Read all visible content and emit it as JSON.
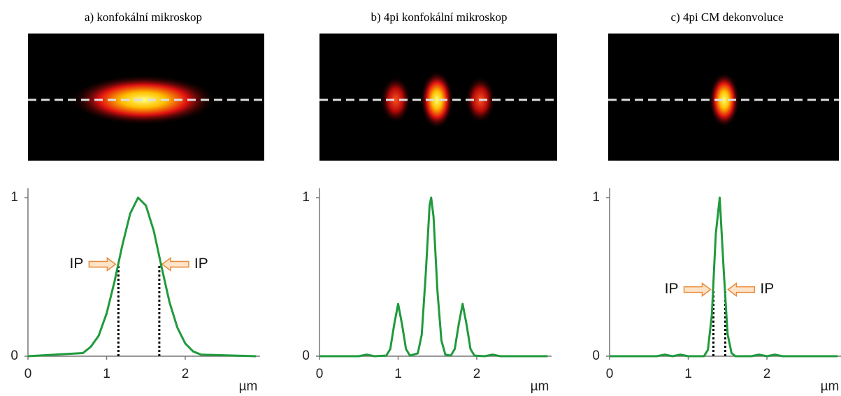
{
  "chart_data": [
    {
      "type": "line",
      "title": "a) konfokální mikroskop",
      "x": [
        0,
        0.7,
        0.8,
        0.9,
        1.0,
        1.1,
        1.2,
        1.3,
        1.4,
        1.5,
        1.6,
        1.7,
        1.8,
        1.9,
        2.0,
        2.1,
        2.2,
        2.9
      ],
      "series": [
        {
          "color": "#1f9a3c",
          "values": [
            0,
            0.02,
            0.06,
            0.13,
            0.27,
            0.47,
            0.7,
            0.9,
            1.0,
            0.95,
            0.79,
            0.56,
            0.34,
            0.18,
            0.08,
            0.03,
            0.01,
            0
          ]
        }
      ],
      "xlim": [
        0,
        2.95
      ],
      "ylim": [
        0,
        1.06
      ],
      "xticks": [
        0,
        1,
        2
      ],
      "yticks": [
        0,
        1
      ],
      "xlabel": "µm",
      "ip_lines": [
        {
          "x": 1.15,
          "y": 0.58
        },
        {
          "x": 1.67,
          "y": 0.58
        }
      ],
      "annotations": [
        "IP",
        "IP"
      ]
    },
    {
      "type": "line",
      "title": "b) 4pi konfokální mikroskop",
      "x": [
        0,
        0.5,
        0.6,
        0.7,
        0.85,
        0.9,
        0.95,
        1.0,
        1.05,
        1.1,
        1.15,
        1.25,
        1.3,
        1.35,
        1.4,
        1.42,
        1.45,
        1.5,
        1.55,
        1.6,
        1.67,
        1.72,
        1.77,
        1.82,
        1.87,
        1.92,
        1.97,
        2.1,
        2.2,
        2.3,
        2.9
      ],
      "series": [
        {
          "color": "#1f9a3c",
          "values": [
            0,
            0,
            0.01,
            0,
            0.004,
            0.045,
            0.2,
            0.33,
            0.2,
            0.045,
            0.004,
            0.018,
            0.135,
            0.51,
            0.95,
            1.0,
            0.88,
            0.41,
            0.1,
            0.01,
            0.004,
            0.045,
            0.2,
            0.33,
            0.2,
            0.045,
            0.004,
            0,
            0.01,
            0,
            0
          ]
        }
      ],
      "xlim": [
        0,
        2.95
      ],
      "ylim": [
        0,
        1.06
      ],
      "xticks": [
        0,
        1,
        2
      ],
      "yticks": [
        0,
        1
      ],
      "xlabel": "µm"
    },
    {
      "type": "line",
      "title": "c) 4pi CM dekonvoluce",
      "x": [
        0,
        0.6,
        0.7,
        0.8,
        0.9,
        1.0,
        1.2,
        1.25,
        1.3,
        1.35,
        1.4,
        1.45,
        1.5,
        1.55,
        1.6,
        1.8,
        1.9,
        2.0,
        2.1,
        2.2,
        2.9
      ],
      "series": [
        {
          "color": "#1f9a3c",
          "values": [
            0,
            0,
            0.01,
            0,
            0.01,
            0,
            0,
            0.04,
            0.26,
            0.77,
            1.0,
            0.55,
            0.14,
            0.02,
            0,
            0,
            0.01,
            0,
            0.01,
            0,
            0
          ]
        }
      ],
      "xlim": [
        0,
        2.95
      ],
      "ylim": [
        0,
        1.06
      ],
      "xticks": [
        0,
        1,
        2
      ],
      "yticks": [
        0,
        1
      ],
      "xlabel": "µm",
      "ip_lines": [
        {
          "x": 1.32,
          "y": 0.42
        },
        {
          "x": 1.47,
          "y": 0.42
        }
      ],
      "annotations": [
        "IP",
        "IP"
      ]
    }
  ]
}
